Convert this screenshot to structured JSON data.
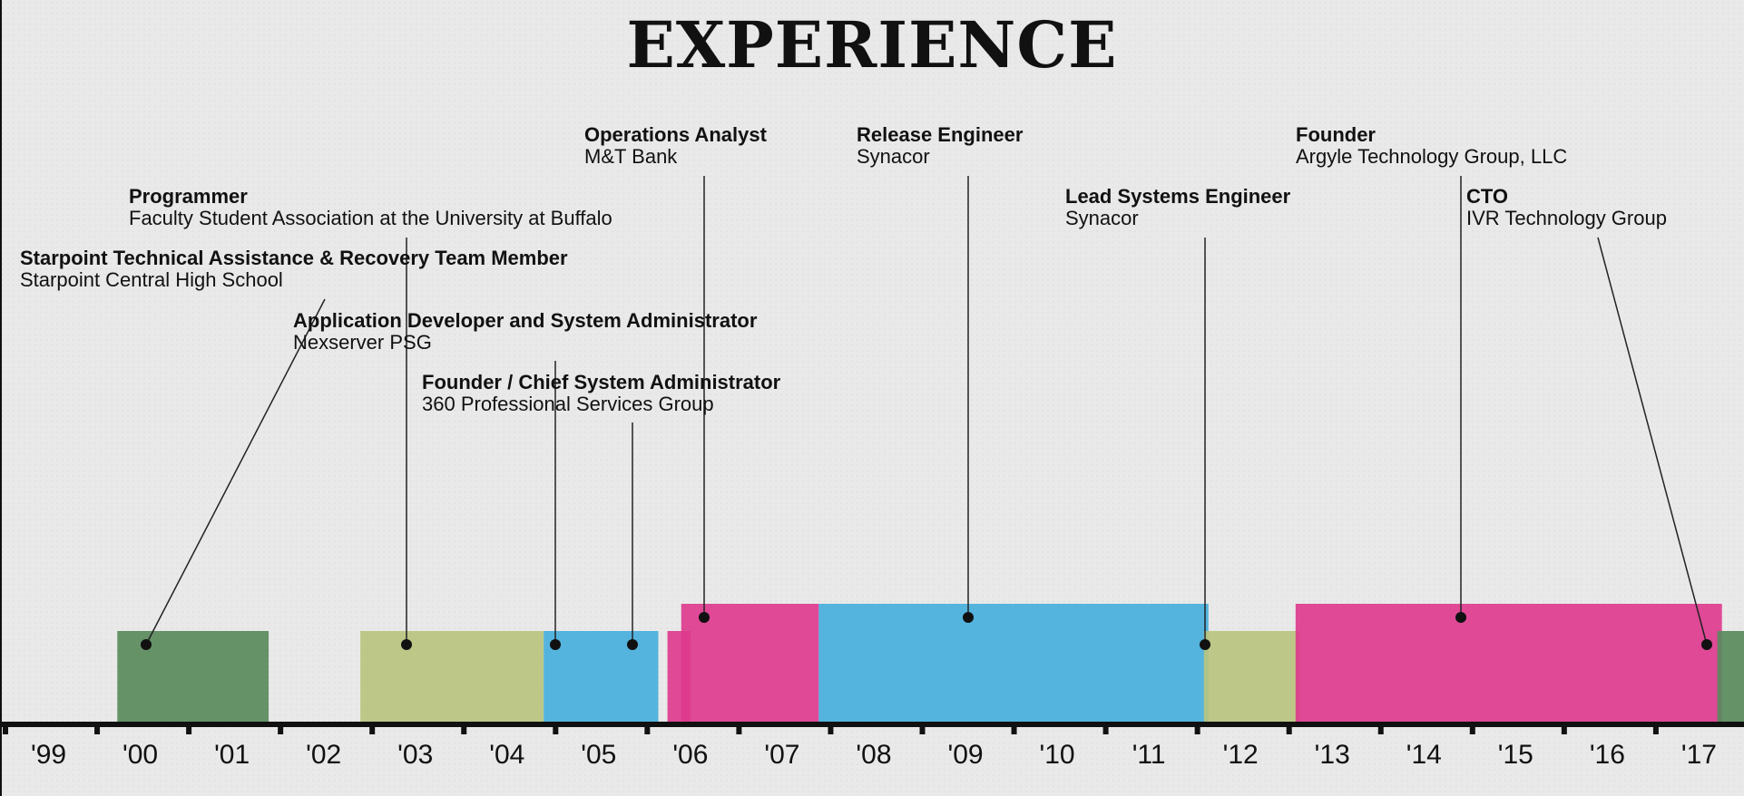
{
  "title": "EXPERIENCE",
  "chart_data": {
    "type": "bar",
    "title": "EXPERIENCE",
    "x_axis": {
      "range": [
        1998.5,
        2017.5
      ],
      "ticks": [
        "'99",
        "'00",
        "'01",
        "'02",
        "'03",
        "'04",
        "'05",
        "'06",
        "'07",
        "'08",
        "'09",
        "'10",
        "'11",
        "'12",
        "'13",
        "'14",
        "'15",
        "'16",
        "'17"
      ]
    },
    "grid": false,
    "legend": "none",
    "series": [
      {
        "title": "Starpoint Technical Assistance & Recovery Team Member",
        "org": "Starpoint Central High School",
        "start": 1999.75,
        "end": 2001.4,
        "color": "#5a8a5c",
        "tier": 1
      },
      {
        "title": "Programmer",
        "org": "Faculty Student Association at the University at Buffalo",
        "start": 2002.4,
        "end": 2004.4,
        "color": "#b8c47f",
        "tier": 1
      },
      {
        "title": "Application Developer and System Administrator",
        "org": "Nexserver PSG",
        "start": 2004.4,
        "end": 2005.65,
        "color": "#46afdc",
        "tier": 1
      },
      {
        "title": "Founder / Chief System Administrator",
        "org": "360 Professional Services Group",
        "start": 2005.75,
        "end": 2006.0,
        "color": "#dd3b8e",
        "tier": 1
      },
      {
        "title": "Operations Analyst",
        "org": "M&T Bank",
        "start": 2005.9,
        "end": 2007.4,
        "color": "#dd3b8e",
        "tier": 2
      },
      {
        "title": "Release Engineer",
        "org": "Synacor",
        "start": 2007.4,
        "end": 2011.65,
        "color": "#46afdc",
        "tier": 2
      },
      {
        "title": "Lead Systems Engineer",
        "org": "Synacor",
        "start": 2011.6,
        "end": 2012.65,
        "color": "#b8c47f",
        "tier": 1
      },
      {
        "title": "Founder",
        "org": "Argyle Technology Group, LLC",
        "start": 2012.6,
        "end": 2017.25,
        "color": "#dd3b8e",
        "tier": 2
      },
      {
        "title": "CTO",
        "org": "IVR Technology Group",
        "start": 2017.2,
        "end": 2018.0,
        "color": "#5a8a5c",
        "tier": 1
      }
    ]
  }
}
